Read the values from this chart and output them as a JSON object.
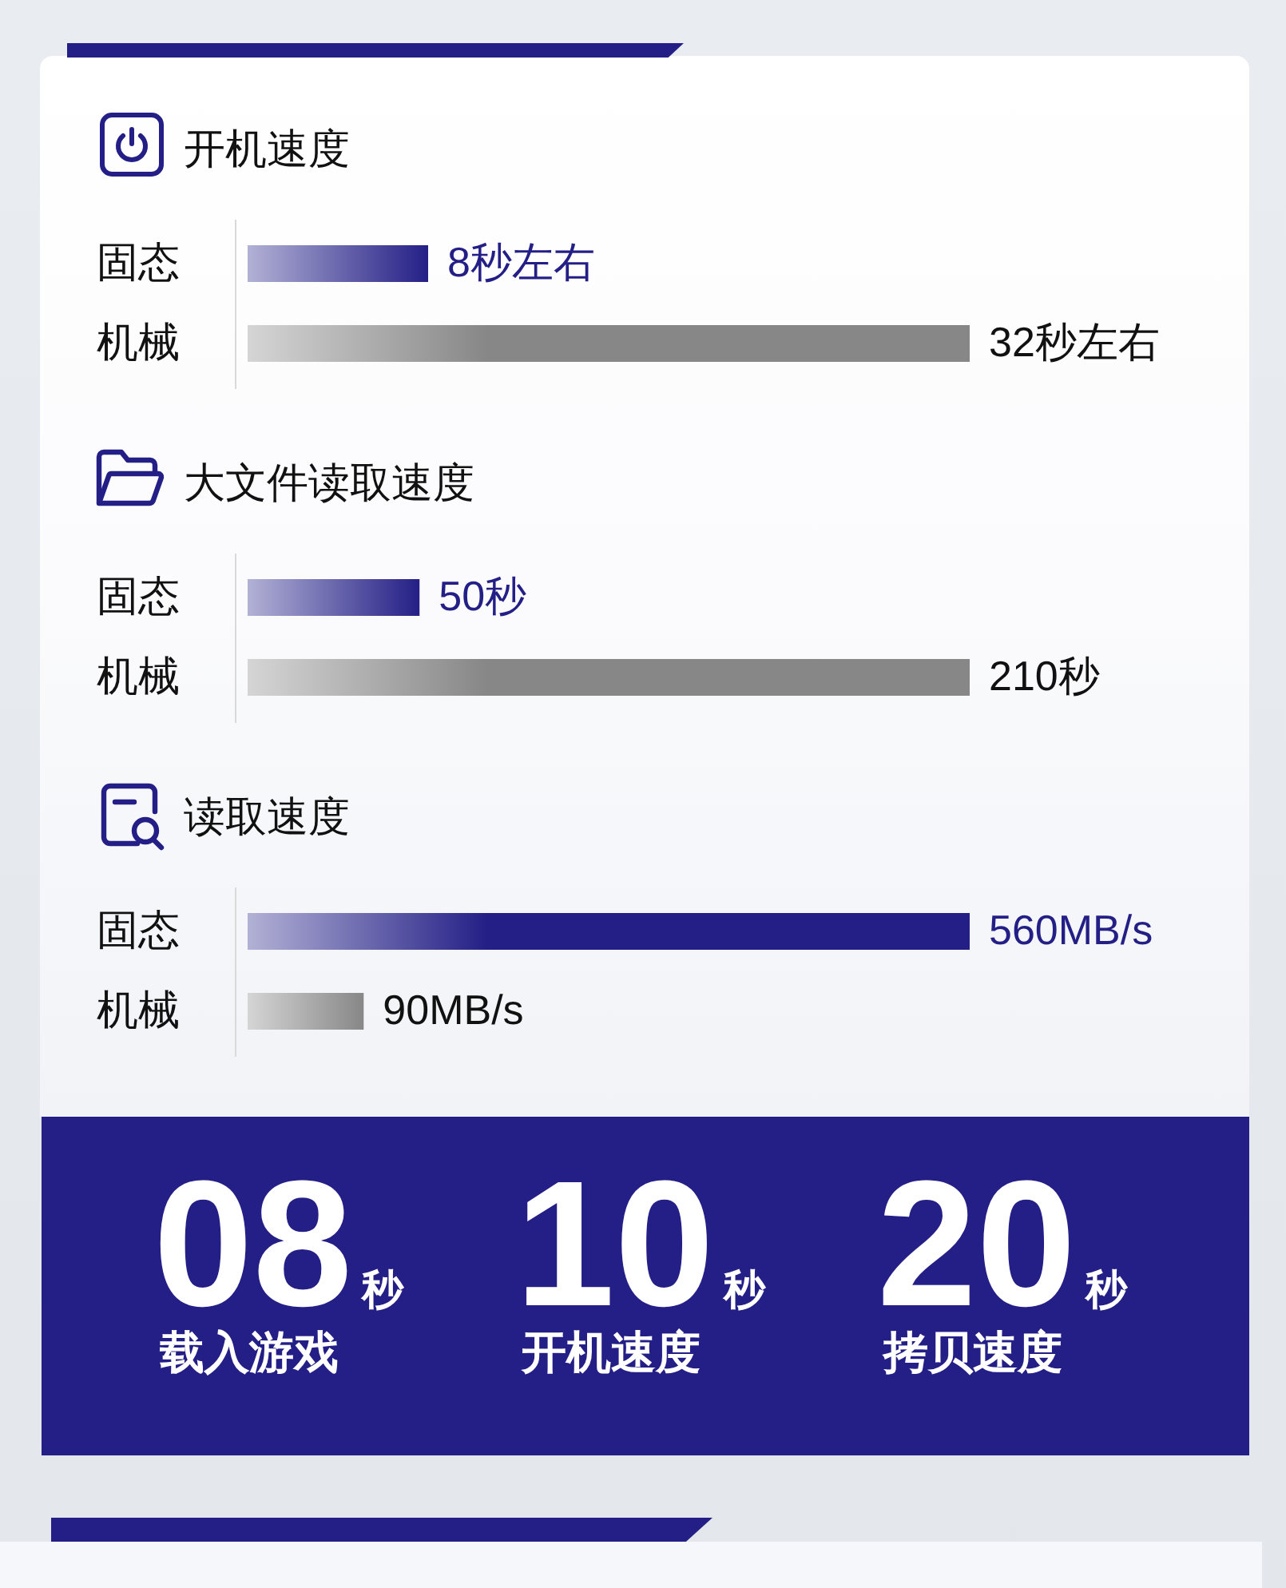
{
  "chart_data": [
    {
      "type": "bar",
      "orientation": "horizontal",
      "title": "开机速度",
      "categories": [
        "固态",
        "机械"
      ],
      "values": [
        8,
        32
      ],
      "value_labels": [
        "8秒左右",
        "32秒左右"
      ],
      "colors": [
        "#241f86",
        "#878787"
      ],
      "tick_labels": "y"
    },
    {
      "type": "bar",
      "orientation": "horizontal",
      "title": "大文件读取速度",
      "categories": [
        "固态",
        "机械"
      ],
      "values": [
        50,
        210
      ],
      "value_labels": [
        "50秒",
        "210秒"
      ],
      "colors": [
        "#241f86",
        "#878787"
      ],
      "tick_labels": "y"
    },
    {
      "type": "bar",
      "orientation": "horizontal",
      "title": "读取速度",
      "categories": [
        "固态",
        "机械"
      ],
      "values": [
        560,
        90
      ],
      "value_labels": [
        "560MB/s",
        "90MB/s"
      ],
      "colors": [
        "#241f86",
        "#878787"
      ],
      "tick_labels": "y"
    },
    {
      "type": "other",
      "annotations": [
        "08",
        "秒",
        "载入游戏",
        "10",
        "秒",
        "开机速度",
        "20",
        "秒",
        "拷贝速度"
      ]
    }
  ]
}
